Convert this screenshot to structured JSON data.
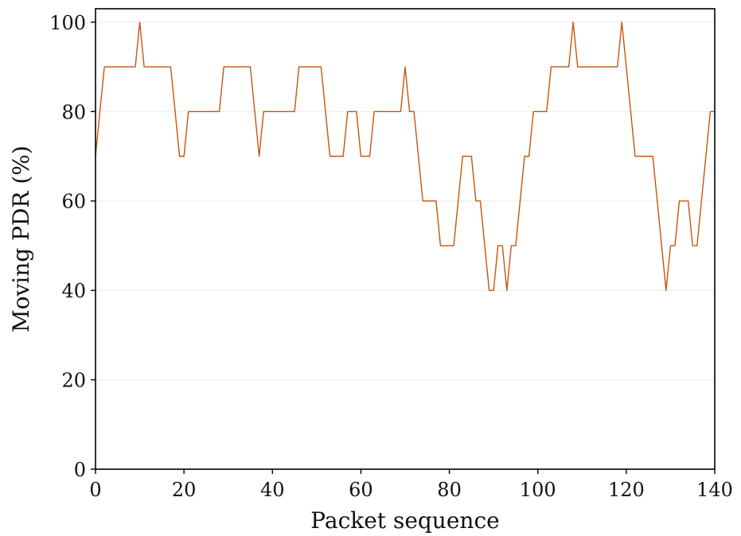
{
  "chart_data": {
    "type": "line",
    "title": "",
    "xlabel": "Packet sequence",
    "ylabel": "Moving PDR (%)",
    "xlim": [
      0,
      140
    ],
    "ylim": [
      0,
      103
    ],
    "xticks": [
      0,
      20,
      40,
      60,
      80,
      100,
      120,
      140
    ],
    "yticks": [
      0,
      20,
      40,
      60,
      80,
      100
    ],
    "grid": "horizontal, faint",
    "legend": "none",
    "series": [
      {
        "color": "#c9550c",
        "x": [
          0,
          2,
          9,
          10,
          11,
          17,
          19,
          20,
          21,
          28,
          29,
          35,
          37,
          38,
          45,
          46,
          51,
          53,
          56,
          57,
          59,
          60,
          62,
          63,
          69,
          70,
          71,
          72,
          74,
          76,
          77,
          78,
          80,
          81,
          83,
          85,
          86,
          87,
          89,
          90,
          91,
          92,
          93,
          94,
          95,
          97,
          98,
          99,
          102,
          103,
          107,
          108,
          109,
          118,
          119,
          122,
          126,
          129,
          130,
          131,
          132,
          134,
          135,
          136,
          139,
          140
        ],
        "y": [
          70,
          90,
          90,
          100,
          90,
          90,
          70,
          70,
          80,
          80,
          90,
          90,
          70,
          80,
          80,
          90,
          90,
          70,
          70,
          80,
          80,
          70,
          70,
          80,
          80,
          90,
          80,
          80,
          60,
          60,
          60,
          50,
          50,
          50,
          70,
          70,
          60,
          60,
          40,
          40,
          50,
          50,
          40,
          50,
          50,
          70,
          70,
          80,
          80,
          90,
          90,
          100,
          90,
          90,
          100,
          70,
          70,
          40,
          50,
          50,
          60,
          60,
          50,
          50,
          80,
          80
        ]
      }
    ]
  }
}
